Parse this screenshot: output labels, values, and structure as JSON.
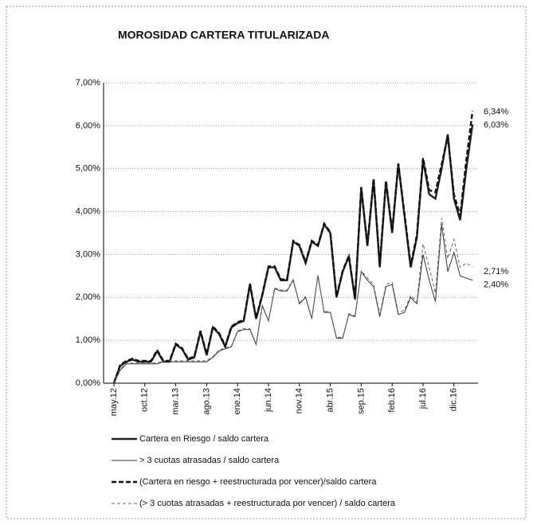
{
  "chart_data": {
    "type": "line",
    "title": "MOROSIDAD CARTERA TITULARIZADA",
    "categories": [
      "may.12",
      null,
      null,
      null,
      null,
      "oct.12",
      null,
      null,
      null,
      null,
      "mar.13",
      null,
      null,
      null,
      null,
      "ago.13",
      null,
      null,
      null,
      null,
      "ene.14",
      null,
      null,
      null,
      null,
      "jun.14",
      null,
      null,
      null,
      null,
      "nov.14",
      null,
      null,
      null,
      null,
      "abr.15",
      null,
      null,
      null,
      null,
      "sep.15",
      null,
      null,
      null,
      null,
      "feb.16",
      null,
      null,
      null,
      null,
      "jul.16",
      null,
      null,
      null,
      null,
      "dic.16",
      null,
      null,
      null
    ],
    "ylim": [
      0,
      7
    ],
    "yticks": [
      {
        "value": 0,
        "label": "0,00%"
      },
      {
        "value": 1,
        "label": "1,00%"
      },
      {
        "value": 2,
        "label": "2,00%"
      },
      {
        "value": 3,
        "label": "3,00%"
      },
      {
        "value": 4,
        "label": "4,00%"
      },
      {
        "value": 5,
        "label": "5,00%"
      },
      {
        "value": 6,
        "label": "6,00%"
      },
      {
        "value": 7,
        "label": "7,00%"
      }
    ],
    "grid": true,
    "series": [
      {
        "name": "Cartera en Riesgo / saldo cartera",
        "color": "#222",
        "width": 2.4,
        "dash": "none",
        "end_label": "6,03%",
        "values": [
          0,
          0.4,
          0.5,
          0.55,
          0.5,
          0.5,
          0.5,
          0.75,
          0.5,
          0.5,
          0.9,
          0.8,
          0.55,
          0.6,
          1.2,
          0.65,
          1.3,
          1.15,
          0.85,
          1.3,
          1.4,
          1.45,
          2.3,
          1.5,
          2.05,
          2.7,
          2.7,
          2.4,
          2.4,
          3.3,
          3.2,
          2.8,
          3.3,
          3.2,
          3.7,
          3.5,
          2.0,
          2.6,
          2.95,
          1.95,
          4.55,
          3.2,
          4.75,
          2.7,
          4.7,
          3.5,
          5.1,
          3.9,
          2.7,
          3.4,
          5.2,
          4.4,
          4.3,
          5.0,
          5.8,
          4.3,
          3.8,
          5.0,
          6.03
        ]
      },
      {
        "name": "> 3 cuotas atrasadas / saldo cartera",
        "color": "#333",
        "width": 1,
        "dash": "none",
        "end_label": "2,40%",
        "values": [
          0,
          0.3,
          0.45,
          0.45,
          0.45,
          0.45,
          0.45,
          0.45,
          0.5,
          0.5,
          0.5,
          0.5,
          0.5,
          0.5,
          0.5,
          0.5,
          0.6,
          0.75,
          0.8,
          0.85,
          1.2,
          1.25,
          1.25,
          0.9,
          1.8,
          1.45,
          2.2,
          2.15,
          2.15,
          2.4,
          1.85,
          2.0,
          1.5,
          2.5,
          1.65,
          1.65,
          1.05,
          1.05,
          1.6,
          1.55,
          2.6,
          2.4,
          2.25,
          1.55,
          2.25,
          2.3,
          1.6,
          1.65,
          2.0,
          1.85,
          3.0,
          2.4,
          1.9,
          3.7,
          2.6,
          3.05,
          2.5,
          2.45,
          2.4
        ]
      },
      {
        "name": "(Cartera en riesgo + reestructurada por vencer)/saldo cartera",
        "color": "#111",
        "width": 2.4,
        "dash": "6 3",
        "end_label": "6,34%",
        "values": [
          0,
          0.42,
          0.52,
          0.57,
          0.52,
          0.52,
          0.52,
          0.77,
          0.52,
          0.52,
          0.92,
          0.82,
          0.57,
          0.62,
          1.22,
          0.67,
          1.32,
          1.17,
          0.87,
          1.32,
          1.42,
          1.47,
          2.32,
          1.52,
          2.07,
          2.72,
          2.72,
          2.42,
          2.42,
          3.32,
          3.22,
          2.82,
          3.32,
          3.22,
          3.72,
          3.52,
          2.02,
          2.62,
          2.97,
          1.97,
          4.57,
          3.22,
          4.77,
          2.75,
          4.72,
          3.55,
          5.12,
          3.95,
          2.75,
          3.45,
          5.25,
          4.5,
          4.45,
          5.1,
          5.75,
          4.4,
          3.9,
          5.2,
          6.34
        ]
      },
      {
        "name": "(> 3 cuotas atrasadas + reestructurada por vencer) / saldo cartera",
        "color": "#666",
        "width": 1,
        "dash": "4 3",
        "end_label": "2,71%",
        "values": [
          0,
          0.32,
          0.47,
          0.47,
          0.47,
          0.47,
          0.47,
          0.47,
          0.52,
          0.52,
          0.52,
          0.52,
          0.52,
          0.52,
          0.52,
          0.52,
          0.62,
          0.77,
          0.82,
          0.87,
          1.22,
          1.27,
          1.27,
          0.92,
          1.82,
          1.47,
          2.22,
          2.17,
          2.17,
          2.42,
          1.87,
          2.02,
          1.52,
          2.52,
          1.67,
          1.67,
          1.07,
          1.07,
          1.62,
          1.57,
          2.62,
          2.45,
          2.3,
          1.6,
          2.3,
          2.35,
          1.65,
          1.7,
          2.05,
          1.9,
          3.25,
          2.7,
          2.1,
          3.85,
          2.9,
          3.35,
          2.7,
          2.8,
          2.71
        ]
      }
    ]
  }
}
